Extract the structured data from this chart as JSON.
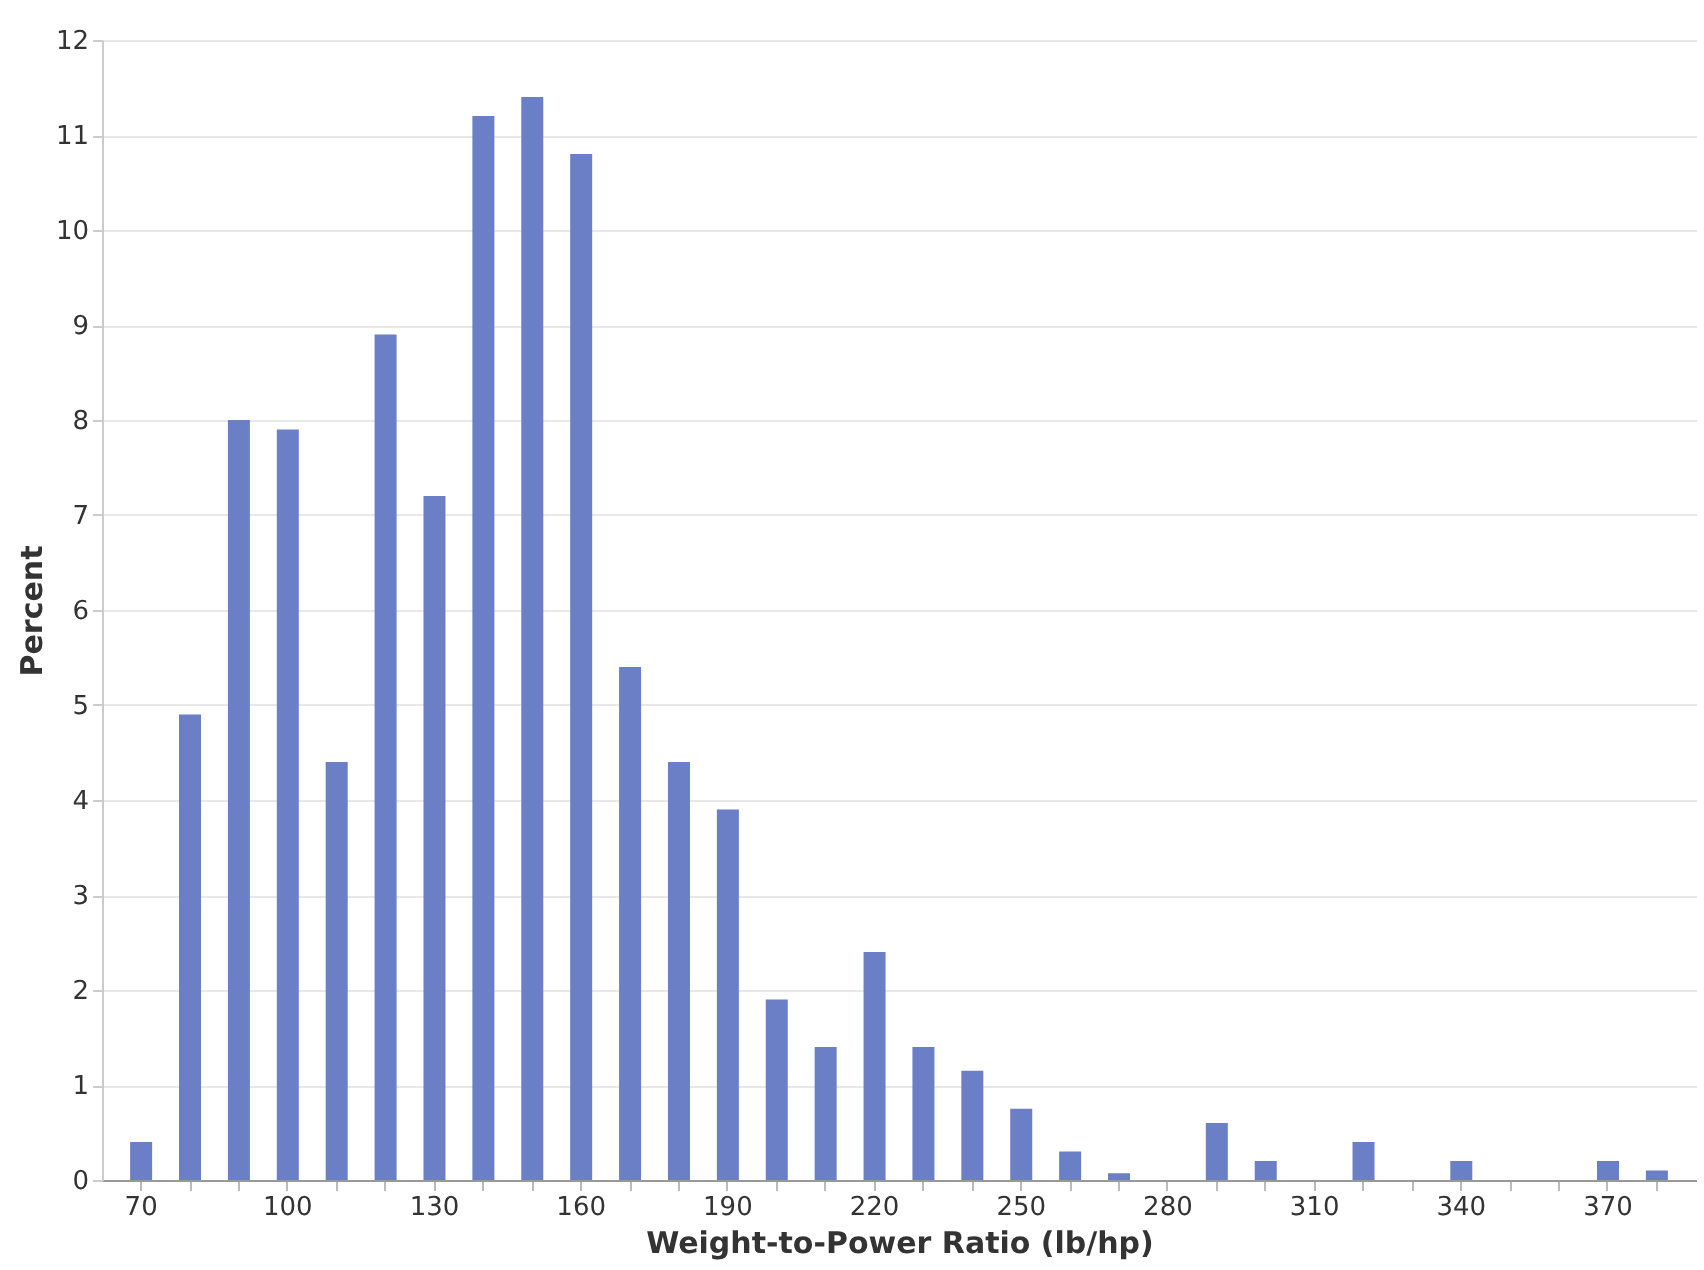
{
  "chart_data": {
    "type": "bar",
    "xlabel": "Weight-to-Power Ratio (lb/hp)",
    "ylabel": "Percent",
    "categories": [
      "70",
      null,
      null,
      "100",
      null,
      null,
      "130",
      null,
      null,
      "160",
      null,
      null,
      "190",
      null,
      null,
      "220",
      null,
      null,
      "250",
      null,
      null,
      "280",
      null,
      null,
      "310",
      null,
      null,
      "340",
      null,
      null,
      "370",
      null
    ],
    "values": [
      0.4,
      4.9,
      8.0,
      7.9,
      4.4,
      8.9,
      7.2,
      11.2,
      11.4,
      10.8,
      5.4,
      4.4,
      3.9,
      1.9,
      1.4,
      2.4,
      1.4,
      1.15,
      0.75,
      0.3,
      0.07,
      0,
      0.6,
      0.2,
      0,
      0.4,
      0,
      0.2,
      0,
      0,
      0.2,
      0.1
    ],
    "color": "#6b7fc6",
    "ylim": [
      0,
      12
    ],
    "yticks": [
      0,
      1,
      2,
      3,
      4,
      5,
      6,
      7,
      8,
      9,
      10,
      11,
      12
    ],
    "grid": "y"
  }
}
